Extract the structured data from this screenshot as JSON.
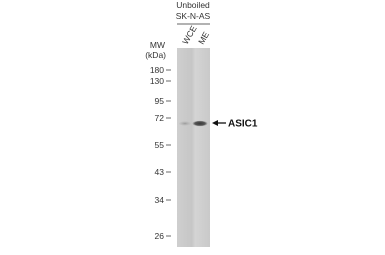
{
  "header": {
    "condition": "Unboiled",
    "cell_line": "SK-N-AS"
  },
  "lanes": [
    "WCE",
    "ME"
  ],
  "mw": {
    "title": "MW",
    "unit": "(kDa)",
    "markers": [
      "180",
      "130",
      "95",
      "72",
      "55",
      "43",
      "34",
      "26"
    ]
  },
  "target": "ASIC1"
}
